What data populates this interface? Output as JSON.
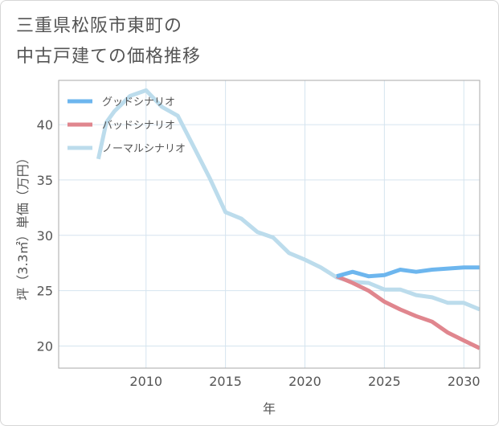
{
  "title_lines": [
    "三重県松阪市東町の",
    "中古戸建ての価格推移"
  ],
  "colors": {
    "good": "#6db6ee",
    "bad": "#e0868e",
    "normal": "#bcdcec",
    "grid": "#d5e4ef",
    "plot_border": "#aaaaaa"
  },
  "chart_data": {
    "type": "line",
    "title": "三重県松阪市東町の中古戸建ての価格推移",
    "xlabel": "年",
    "ylabel": "坪（3.3㎡）単価（万円）",
    "xlim": [
      2004.5,
      2031
    ],
    "ylim": [
      18,
      44
    ],
    "x_ticks": [
      2010,
      2015,
      2020,
      2025,
      2030
    ],
    "y_ticks": [
      20,
      25,
      30,
      35,
      40
    ],
    "grid": true,
    "legend_position": "top-left",
    "series": [
      {
        "name": "グッドシナリオ",
        "color_key": "good",
        "points": [
          [
            2022,
            26.3
          ],
          [
            2023,
            26.7
          ],
          [
            2024,
            26.3
          ],
          [
            2025,
            26.4
          ],
          [
            2026,
            26.9
          ],
          [
            2027,
            26.7
          ],
          [
            2028,
            26.9
          ],
          [
            2029,
            27.0
          ],
          [
            2030,
            27.1
          ],
          [
            2031,
            27.1
          ]
        ]
      },
      {
        "name": "バッドシナリオ",
        "color_key": "bad",
        "points": [
          [
            2022,
            26.3
          ],
          [
            2023,
            25.7
          ],
          [
            2024,
            25.0
          ],
          [
            2025,
            24.0
          ],
          [
            2026,
            23.3
          ],
          [
            2027,
            22.7
          ],
          [
            2028,
            22.2
          ],
          [
            2029,
            21.2
          ],
          [
            2030,
            20.5
          ],
          [
            2031,
            19.8
          ]
        ]
      },
      {
        "name": "ノーマルシナリオ",
        "color_key": "normal",
        "points": [
          [
            2007,
            36.9
          ],
          [
            2007.5,
            40.2
          ],
          [
            2008,
            41.2
          ],
          [
            2009,
            42.6
          ],
          [
            2010,
            43.1
          ],
          [
            2011,
            41.6
          ],
          [
            2012,
            40.8
          ],
          [
            2013,
            38.0
          ],
          [
            2014,
            35.2
          ],
          [
            2015,
            32.1
          ],
          [
            2016,
            31.5
          ],
          [
            2017,
            30.3
          ],
          [
            2018,
            29.8
          ],
          [
            2019,
            28.4
          ],
          [
            2020,
            27.8
          ],
          [
            2021,
            27.1
          ],
          [
            2022,
            26.2
          ],
          [
            2023,
            25.8
          ],
          [
            2024,
            25.7
          ],
          [
            2025,
            25.1
          ],
          [
            2026,
            25.1
          ],
          [
            2027,
            24.6
          ],
          [
            2028,
            24.4
          ],
          [
            2029,
            23.9
          ],
          [
            2030,
            23.9
          ],
          [
            2031,
            23.3
          ]
        ]
      }
    ]
  }
}
